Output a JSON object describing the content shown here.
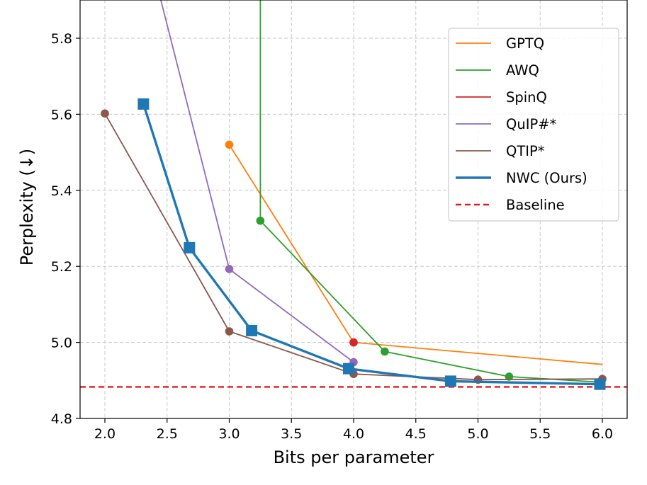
{
  "chart_data": {
    "type": "line",
    "title": "",
    "xlabel": "Bits per parameter",
    "ylabel": "Perplexity (↓)",
    "xlim": [
      1.8,
      6.2
    ],
    "ylim": [
      4.8,
      5.85
    ],
    "xticks": [
      "2.0",
      "2.5",
      "3.0",
      "3.5",
      "4.0",
      "4.5",
      "5.0",
      "5.5",
      "6.0"
    ],
    "yticks": [
      "4.8",
      "5.0",
      "5.2",
      "5.4",
      "5.6",
      "5.8"
    ],
    "grid": true,
    "legend_position": "top-right",
    "series": [
      {
        "name": "GPTQ",
        "color": "#ff7f0e",
        "marker": "circle",
        "x": [
          3.0,
          4.0,
          6.0
        ],
        "y": [
          5.52,
          5.0,
          4.942
        ],
        "markers_at": [
          0,
          1
        ]
      },
      {
        "name": "AWQ",
        "color": "#2ca02c",
        "marker": "circle",
        "x": [
          3.25,
          3.25,
          4.25,
          5.25,
          6.0
        ],
        "y": [
          5.9,
          5.32,
          4.976,
          4.91,
          4.895
        ],
        "markers_at": [
          1,
          2,
          3
        ]
      },
      {
        "name": "SpinQ",
        "color": "#d62728",
        "marker": "circle",
        "x": [
          4.0
        ],
        "y": [
          5.0
        ],
        "markers_at": [
          0
        ]
      },
      {
        "name": "QuIP#*",
        "color": "#9467bd",
        "marker": "circle",
        "x": [
          2.45,
          3.0,
          4.0
        ],
        "y": [
          5.9,
          5.193,
          4.948
        ],
        "markers_at": [
          1,
          2
        ]
      },
      {
        "name": "QTIP*",
        "color": "#8c564b",
        "marker": "circle",
        "x": [
          2.0,
          3.0,
          4.0,
          5.0,
          6.0
        ],
        "y": [
          5.602,
          5.029,
          4.917,
          4.902,
          4.904
        ],
        "markers_at": [
          0,
          1,
          2,
          3,
          4
        ]
      },
      {
        "name": "NWC (Ours)",
        "color": "#1f77b4",
        "marker": "square",
        "x": [
          2.31,
          2.68,
          3.18,
          3.96,
          4.78,
          5.98
        ],
        "y": [
          5.627,
          5.249,
          5.031,
          4.931,
          4.898,
          4.89
        ],
        "markers_at": [
          0,
          1,
          2,
          3,
          4,
          5
        ]
      }
    ],
    "baseline": {
      "name": "Baseline",
      "color": "#e31a1c",
      "y": 4.883
    }
  }
}
